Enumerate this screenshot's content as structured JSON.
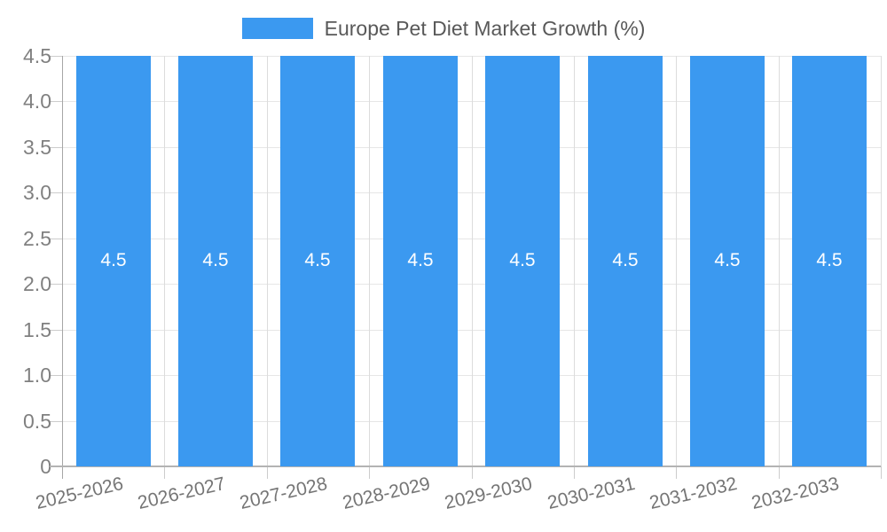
{
  "chart_data": {
    "type": "bar",
    "title": "",
    "xlabel": "",
    "ylabel": "",
    "legend": {
      "label": "Europe Pet Diet Market Growth (%)",
      "position": "top-center"
    },
    "categories": [
      "2025-2026",
      "2026-2027",
      "2027-2028",
      "2028-2029",
      "2029-2030",
      "2030-2031",
      "2031-2032",
      "2032-2033"
    ],
    "series": [
      {
        "name": "Europe Pet Diet Market Growth (%)",
        "values": [
          4.5,
          4.5,
          4.5,
          4.5,
          4.5,
          4.5,
          4.5,
          4.5
        ],
        "bar_labels": [
          "4.5",
          "4.5",
          "4.5",
          "4.5",
          "4.5",
          "4.5",
          "4.5",
          "4.5"
        ]
      }
    ],
    "ylim": [
      0,
      4.5
    ],
    "ytick_values": [
      0,
      0.5,
      1,
      1.5,
      2,
      2.5,
      3,
      3.5,
      4,
      4.5
    ],
    "ytick_labels": [
      "0",
      "0.5",
      "1.0",
      "1.5",
      "2.0",
      "2.5",
      "3.0",
      "3.5",
      "4.0",
      "4.5"
    ],
    "grid": true,
    "colors": {
      "bar": "#3b99f0",
      "bar_label": "#ffffff",
      "grid_h": "#e6e6e6",
      "grid_v": "#dcdcdc",
      "axis": "#a6a6a6",
      "axis_bottom": "#b3b3b3",
      "tick": "#cccccc",
      "ytick_text": "#808080",
      "xtick_text": "#757575",
      "legend_text": "#595959",
      "background": "#ffffff"
    }
  }
}
